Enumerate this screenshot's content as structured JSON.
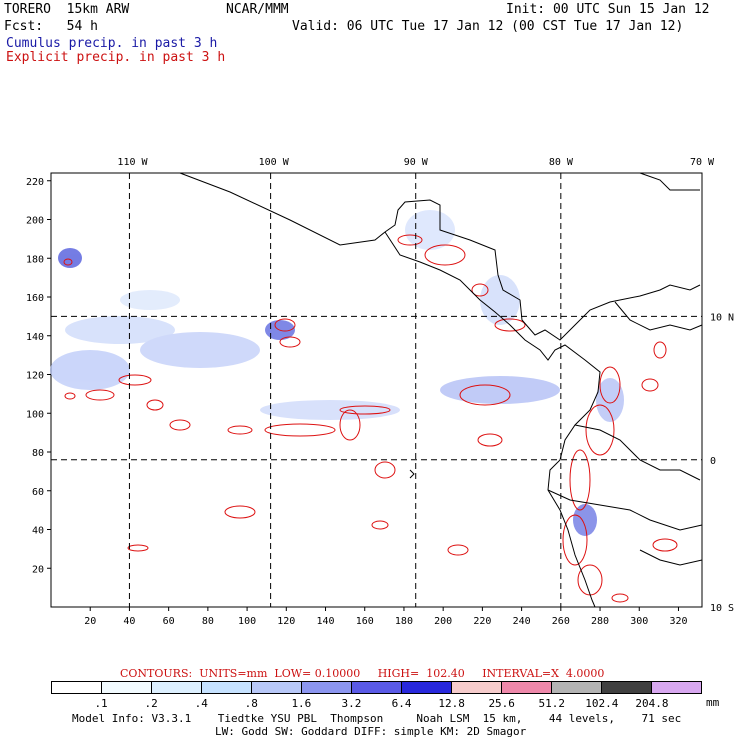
{
  "header": {
    "model": "TORERO  15km ARW",
    "center": "NCAR/MMM",
    "init": "Init: 00 UTC Sun 15 Jan 12",
    "fcst": "Fcst:   54 h",
    "valid": "Valid: 06 UTC Tue 17 Jan 12 (00 CST Tue 17 Jan 12)",
    "cumulus": "Cumulus precip. in past 3 h",
    "explicit": "Explicit precip. in past 3 h"
  },
  "map": {
    "lon_labels": [
      "110 W",
      "100 W",
      "90 W",
      "80 W",
      "70 W"
    ],
    "lat_labels": [
      "10 N",
      "0",
      "10 S"
    ],
    "y_ticks": [
      "220",
      "200",
      "180",
      "160",
      "140",
      "120",
      "100",
      "80",
      "60",
      "40",
      "20"
    ],
    "x_ticks": [
      "20",
      "40",
      "60",
      "80",
      "100",
      "120",
      "140",
      "160",
      "180",
      "200",
      "220",
      "240",
      "260",
      "280",
      "300",
      "320"
    ],
    "grid_x_values": [
      40,
      112,
      186,
      260
    ],
    "grid_y_values": [
      150,
      76
    ]
  },
  "contours": {
    "label": "CONTOURS:  UNITS=mm  LOW= 0.10000     HIGH=  102.40     INTERVAL=X  4.0000"
  },
  "colorbar": {
    "labels": [
      ".1",
      ".2",
      ".4",
      ".8",
      "1.6",
      "3.2",
      "6.4",
      "12.8",
      "25.6",
      "51.2",
      "102.4",
      "204.8"
    ],
    "unit": "mm",
    "colors": [
      "#ffffff",
      "#f2fbff",
      "#ddf0ff",
      "#c6e2ff",
      "#b8c8f8",
      "#8c96f0",
      "#5a5ae6",
      "#2828dc",
      "#f6cccc",
      "#ee88aa",
      "#b3b3b3",
      "#404040",
      "#d8a8f0"
    ]
  },
  "footer": {
    "line1": "Model Info: V3.3.1    Tiedtke YSU PBL  Thompson     Noah LSM  15 km,    44 levels,    71 sec",
    "line2": "LW: Godd SW: Goddard DIFF: simple KM: 2D Smagor"
  }
}
